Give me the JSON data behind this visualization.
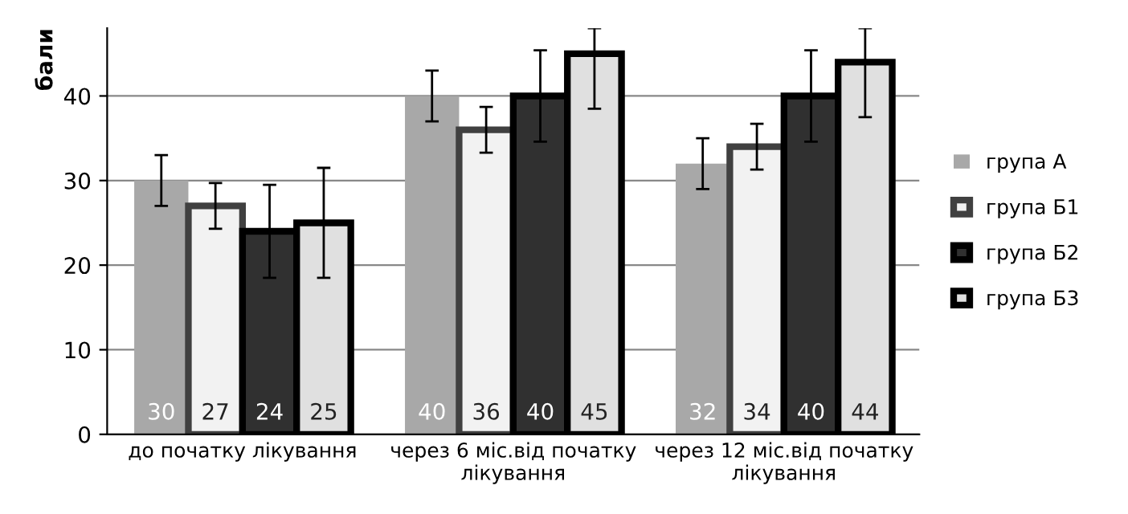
{
  "chart_data": {
    "type": "bar",
    "ylabel": "бали",
    "categories": [
      "до початку лікування",
      "через 6 міс.від початку\nлікування",
      "через 12 міс.від початку\nлікування"
    ],
    "series": [
      {
        "name": "група А",
        "color": "#a8a8a8",
        "values": [
          30,
          40,
          32
        ],
        "errors": [
          3,
          3,
          3
        ]
      },
      {
        "name": "група Б1",
        "color": "#f2f2f2",
        "values": [
          27,
          36,
          34
        ],
        "errors": [
          2.7,
          2.7,
          2.7
        ]
      },
      {
        "name": "група Б2",
        "color": "#303030",
        "values": [
          24,
          40,
          40
        ],
        "errors": [
          5.5,
          5.4,
          5.4
        ]
      },
      {
        "name": "група Б3",
        "color": "#e0e0e0",
        "values": [
          25,
          45,
          44
        ],
        "errors": [
          6.5,
          [
            38.5,
            48
          ],
          [
            37.5,
            48
          ]
        ]
      }
    ],
    "ylim": [
      0,
      48
    ],
    "yticks": [
      0,
      10,
      20,
      30,
      40
    ],
    "grid": "y",
    "legend": "right",
    "data_labels": true
  }
}
